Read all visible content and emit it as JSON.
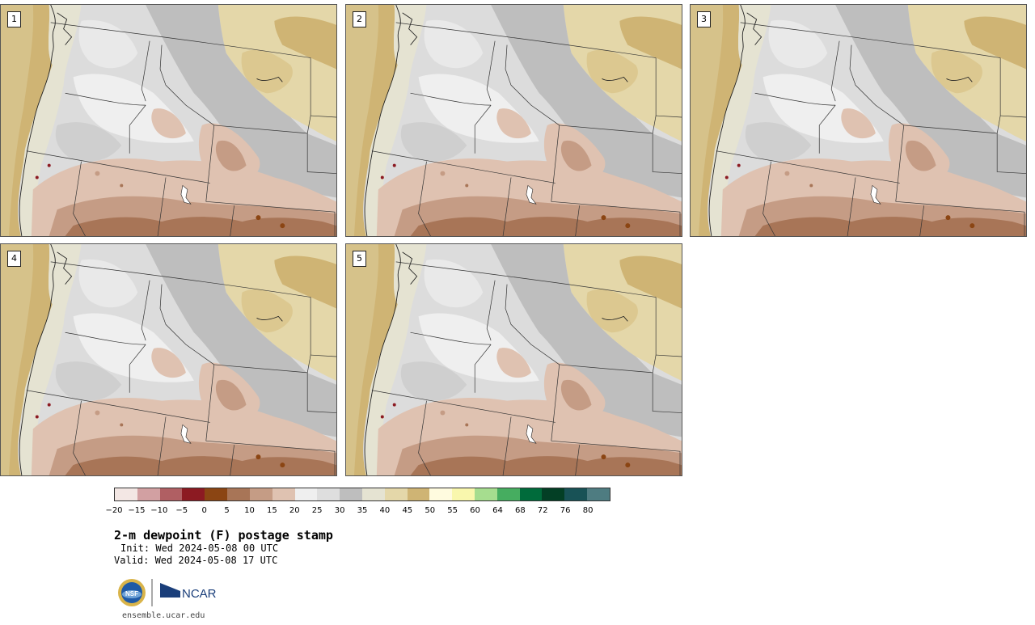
{
  "panels": [
    {
      "label": "1"
    },
    {
      "label": "2"
    },
    {
      "label": "3"
    },
    {
      "label": "4"
    },
    {
      "label": "5"
    }
  ],
  "colorbar": {
    "colors": [
      "#f3e7e4",
      "#d2a0a2",
      "#b05f63",
      "#8c1a22",
      "#8b4513",
      "#a87557",
      "#c59c85",
      "#dfc2b1",
      "#efefef",
      "#dedede",
      "#bebebe",
      "#e5e3d2",
      "#e4d7a9",
      "#cfb474",
      "#fffbdf",
      "#f9f7ad",
      "#a6dd8f",
      "#46ad60",
      "#006b3b",
      "#033f25",
      "#185256",
      "#4e7c81"
    ],
    "tick_labels": [
      "−20",
      "−15",
      "−10",
      "−5",
      "0",
      "5",
      "10",
      "15",
      "20",
      "25",
      "30",
      "35",
      "40",
      "45",
      "50",
      "55",
      "60",
      "64",
      "68",
      "72",
      "76",
      "80"
    ]
  },
  "title": "2-m dewpoint (F) postage stamp",
  "init_line": "Init: Wed 2024-05-08 00 UTC",
  "valid_line": "Valid: Wed 2024-05-08 17 UTC",
  "logos": {
    "nsf": "NSF",
    "ncar": "NCAR"
  },
  "footer": "ensemble.ucar.edu"
}
